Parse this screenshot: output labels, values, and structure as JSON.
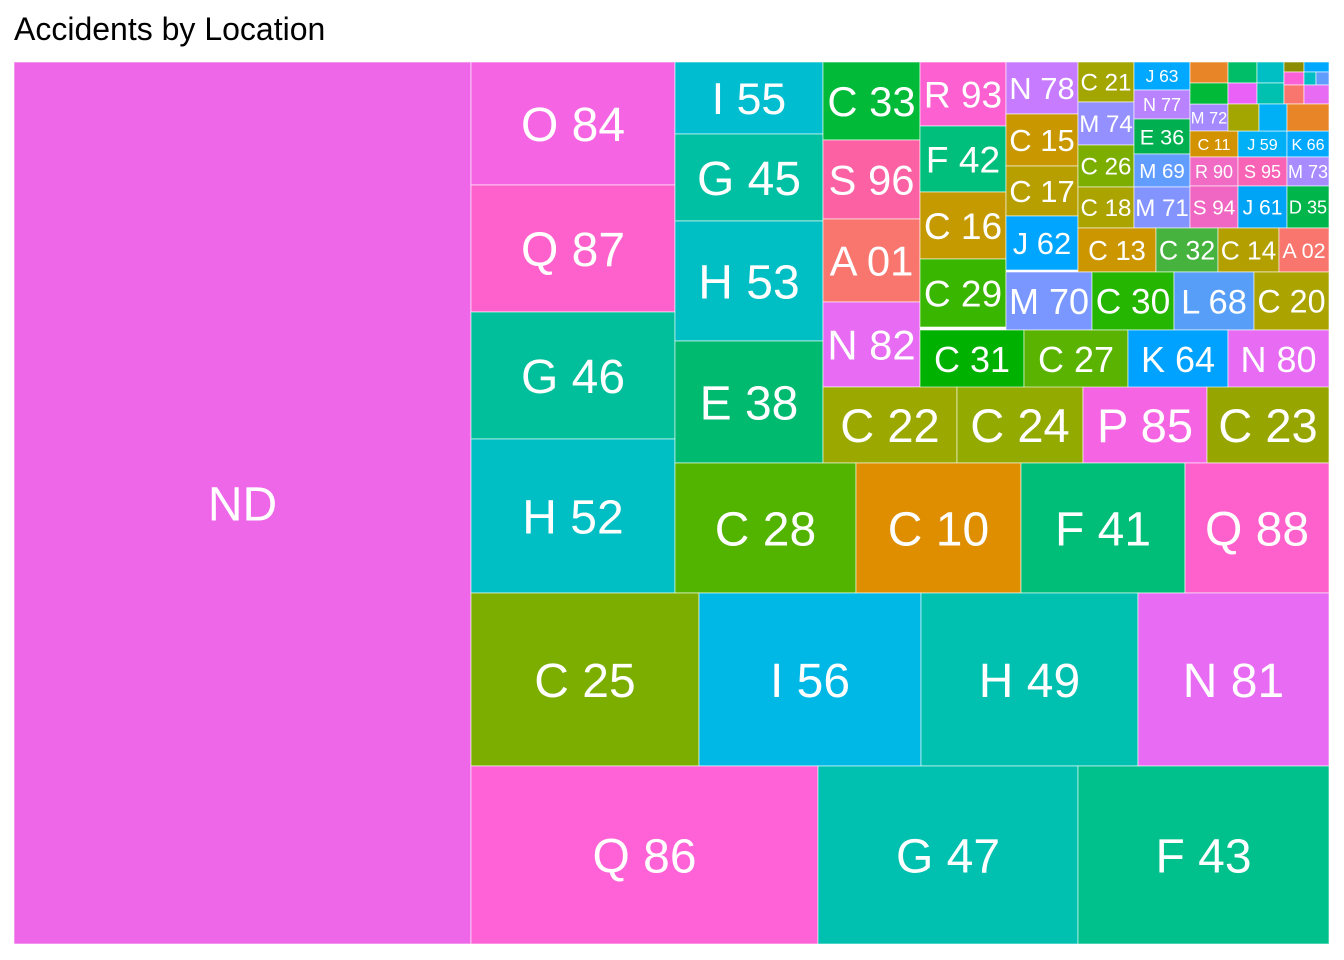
{
  "chart_data": {
    "type": "treemap",
    "title": "Accidents by Location",
    "tiles": [
      {
        "label": "ND",
        "color": "#ee67e8"
      },
      {
        "label": "O 84",
        "color": "#f564e3"
      },
      {
        "label": "Q 87",
        "color": "#ff61cc"
      },
      {
        "label": "G 46",
        "color": "#00bf9a"
      },
      {
        "label": "H 52",
        "color": "#00bfc4"
      },
      {
        "label": "I 55",
        "color": "#00bdd0"
      },
      {
        "label": "G 45",
        "color": "#00c0a3"
      },
      {
        "label": "H 53",
        "color": "#00bfc4"
      },
      {
        "label": "E 38",
        "color": "#00ba70"
      },
      {
        "label": "C 33",
        "color": "#00ba38"
      },
      {
        "label": "S 96",
        "color": "#fb61a3"
      },
      {
        "label": "A 01",
        "color": "#f8766d"
      },
      {
        "label": "N 82",
        "color": "#e76bf3"
      },
      {
        "label": "R 93",
        "color": "#fd61d1"
      },
      {
        "label": "F 42",
        "color": "#00bf7d"
      },
      {
        "label": "C 16",
        "color": "#c49a00"
      },
      {
        "label": "C 29",
        "color": "#39b600"
      },
      {
        "label": "N 78",
        "color": "#c77cff"
      },
      {
        "label": "C 15",
        "color": "#c99800"
      },
      {
        "label": "C 17",
        "color": "#b79f00"
      },
      {
        "label": "J 62",
        "color": "#00a5ff"
      },
      {
        "label": "C 21",
        "color": "#a3a500"
      },
      {
        "label": "M 74",
        "color": "#9590ff"
      },
      {
        "label": "C 26",
        "color": "#7cae00"
      },
      {
        "label": "C 18",
        "color": "#aba300"
      },
      {
        "label": "J 63",
        "color": "#00a9ff"
      },
      {
        "label": "N 77",
        "color": "#b983ff"
      },
      {
        "label": "E 36",
        "color": "#00b050"
      },
      {
        "label": "M 69",
        "color": "#619cff"
      },
      {
        "label": "M 71",
        "color": "#8494ff"
      },
      {
        "label": "M 72",
        "color": "#a58aff"
      },
      {
        "label": "C 11",
        "color": "#d39200"
      },
      {
        "label": "J 59",
        "color": "#00b0f6"
      },
      {
        "label": "K 66",
        "color": "#00a9ff"
      },
      {
        "label": "R 90",
        "color": "#f16ac3"
      },
      {
        "label": "S 95",
        "color": "#f863b5"
      },
      {
        "label": "M 73",
        "color": "#a78bff"
      },
      {
        "label": "S 94",
        "color": "#f066c3"
      },
      {
        "label": "J 61",
        "color": "#00a4f6"
      },
      {
        "label": "D 35",
        "color": "#00b64a"
      },
      {
        "label": "C 13",
        "color": "#cc9600"
      },
      {
        "label": "C 32",
        "color": "#46b33f"
      },
      {
        "label": "C 14",
        "color": "#b3a000"
      },
      {
        "label": "A 02",
        "color": "#f8766d"
      },
      {
        "label": "M 70",
        "color": "#7997ff"
      },
      {
        "label": "C 30",
        "color": "#24b600"
      },
      {
        "label": "L 68",
        "color": "#569ef8"
      },
      {
        "label": "C 20",
        "color": "#aba300"
      },
      {
        "label": "C 31",
        "color": "#00b100"
      },
      {
        "label": "C 27",
        "color": "#5ab300"
      },
      {
        "label": "K 64",
        "color": "#00a2ff"
      },
      {
        "label": "N 80",
        "color": "#e76bf3"
      },
      {
        "label": "C 22",
        "color": "#9aa800"
      },
      {
        "label": "C 24",
        "color": "#93aa00"
      },
      {
        "label": "P 85",
        "color": "#f564e3"
      },
      {
        "label": "C 23",
        "color": "#97a500"
      },
      {
        "label": "C 28",
        "color": "#53b400"
      },
      {
        "label": "C 10",
        "color": "#df8e00"
      },
      {
        "label": "F 41",
        "color": "#00bd77"
      },
      {
        "label": "Q 88",
        "color": "#ff61cc"
      },
      {
        "label": "C 25",
        "color": "#7cae00"
      },
      {
        "label": "I 56",
        "color": "#00b8e5"
      },
      {
        "label": "H 49",
        "color": "#00c0b0"
      },
      {
        "label": "N 81",
        "color": "#e76bf3"
      },
      {
        "label": "Q 86",
        "color": "#ff61d7"
      },
      {
        "label": "G 47",
        "color": "#00c0b0"
      },
      {
        "label": "F 43",
        "color": "#00c08b"
      },
      {
        "label": "",
        "color": "#e88526"
      },
      {
        "label": "",
        "color": "#00be67"
      },
      {
        "label": "",
        "color": "#00bfc4"
      },
      {
        "label": "",
        "color": "#8c8c00"
      },
      {
        "label": "",
        "color": "#00ba38"
      },
      {
        "label": "",
        "color": "#ea61f7"
      },
      {
        "label": "",
        "color": "#00c0b0"
      },
      {
        "label": "",
        "color": "#fb61d7"
      },
      {
        "label": "",
        "color": "#00a9ff"
      },
      {
        "label": "",
        "color": "#f8766d"
      },
      {
        "label": "",
        "color": "#00bfc4"
      },
      {
        "label": "",
        "color": "#619cff"
      },
      {
        "label": "",
        "color": "#e76bf3"
      },
      {
        "label": "",
        "color": "#a3a500"
      },
      {
        "label": "",
        "color": "#00b0f6"
      },
      {
        "label": "",
        "color": "#e88526"
      },
      {
        "label": "",
        "color": "#00bfc4"
      },
      {
        "label": "",
        "color": "#f8766d"
      }
    ]
  }
}
